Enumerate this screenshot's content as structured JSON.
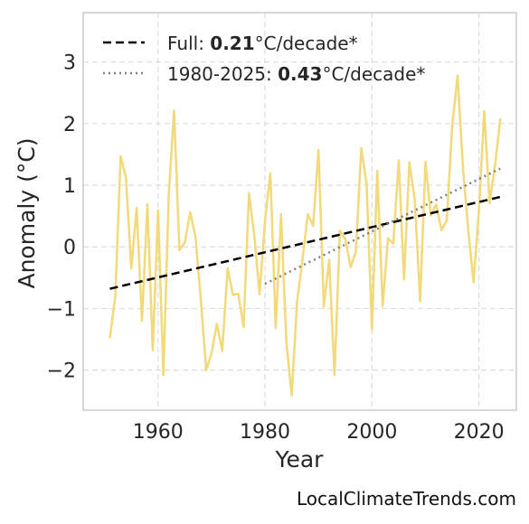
{
  "chart_data": {
    "type": "line",
    "xlabel": "Year",
    "ylabel": "Anomaly (°C)",
    "xlim": [
      1946,
      2027
    ],
    "ylim": [
      -2.65,
      3.8
    ],
    "xticks": [
      1960,
      1980,
      2000,
      2020
    ],
    "yticks": [
      -2,
      -1,
      0,
      1,
      2,
      3
    ],
    "ytick_labels": [
      "−2",
      "−1",
      "0",
      "1",
      "2",
      "3"
    ],
    "grid": true,
    "legend_position": "top-left",
    "colors": {
      "series": "#f2d97a",
      "full_trend": "#000000",
      "recent_trend": "#808080"
    },
    "series": [
      {
        "x": [
          1951,
          1952,
          1953,
          1954,
          1955,
          1956,
          1957,
          1958,
          1959,
          1960,
          1961,
          1962,
          1963,
          1964,
          1965,
          1966,
          1967,
          1968,
          1969,
          1970,
          1971,
          1972,
          1973,
          1974,
          1975,
          1976,
          1977,
          1978,
          1979,
          1980,
          1981,
          1982,
          1983,
          1984,
          1985,
          1986,
          1987,
          1988,
          1989,
          1990,
          1991,
          1992,
          1993,
          1994,
          1995,
          1996,
          1997,
          1998,
          1999,
          2000,
          2001,
          2002,
          2003,
          2004,
          2005,
          2006,
          2007,
          2008,
          2009,
          2010,
          2011,
          2012,
          2013,
          2014,
          2015,
          2016,
          2017,
          2018,
          2019,
          2020,
          2021,
          2022,
          2023,
          2024
        ],
        "values": [
          -1.47,
          -0.8,
          1.47,
          1.12,
          -0.35,
          0.63,
          -1.2,
          0.69,
          -1.68,
          0.59,
          -2.08,
          0.83,
          2.21,
          -0.05,
          0.07,
          0.56,
          0.17,
          -0.86,
          -2.0,
          -1.73,
          -1.25,
          -1.69,
          -0.35,
          -0.78,
          -0.76,
          -1.3,
          0.87,
          0.19,
          -0.77,
          0.43,
          1.19,
          -1.32,
          0.53,
          -1.55,
          -2.41,
          -0.89,
          -0.21,
          0.53,
          0.34,
          1.57,
          -0.97,
          -0.21,
          -2.08,
          0.26,
          0.13,
          -0.33,
          -0.08,
          1.6,
          1.02,
          -1.34,
          1.23,
          -0.96,
          0.14,
          0.05,
          1.4,
          -0.53,
          1.37,
          0.77,
          -0.88,
          1.38,
          0.51,
          0.69,
          0.27,
          0.43,
          1.95,
          2.78,
          1.3,
          0.28,
          -0.57,
          0.59,
          2.2,
          0.71,
          1.31,
          2.07
        ]
      }
    ],
    "trends": [
      {
        "label": "Full: ",
        "value": "0.21",
        "unit": "°C/decade*",
        "x": [
          1951,
          2024
        ],
        "y": [
          -0.68,
          0.81
        ],
        "style": "dashed"
      },
      {
        "label": "1980-2025: ",
        "value": "0.43",
        "unit": "°C/decade*",
        "x": [
          1980,
          2024
        ],
        "y": [
          -0.6,
          1.27
        ],
        "style": "dotted"
      }
    ]
  },
  "footer": {
    "source": "LocalClimateTrends.com"
  }
}
